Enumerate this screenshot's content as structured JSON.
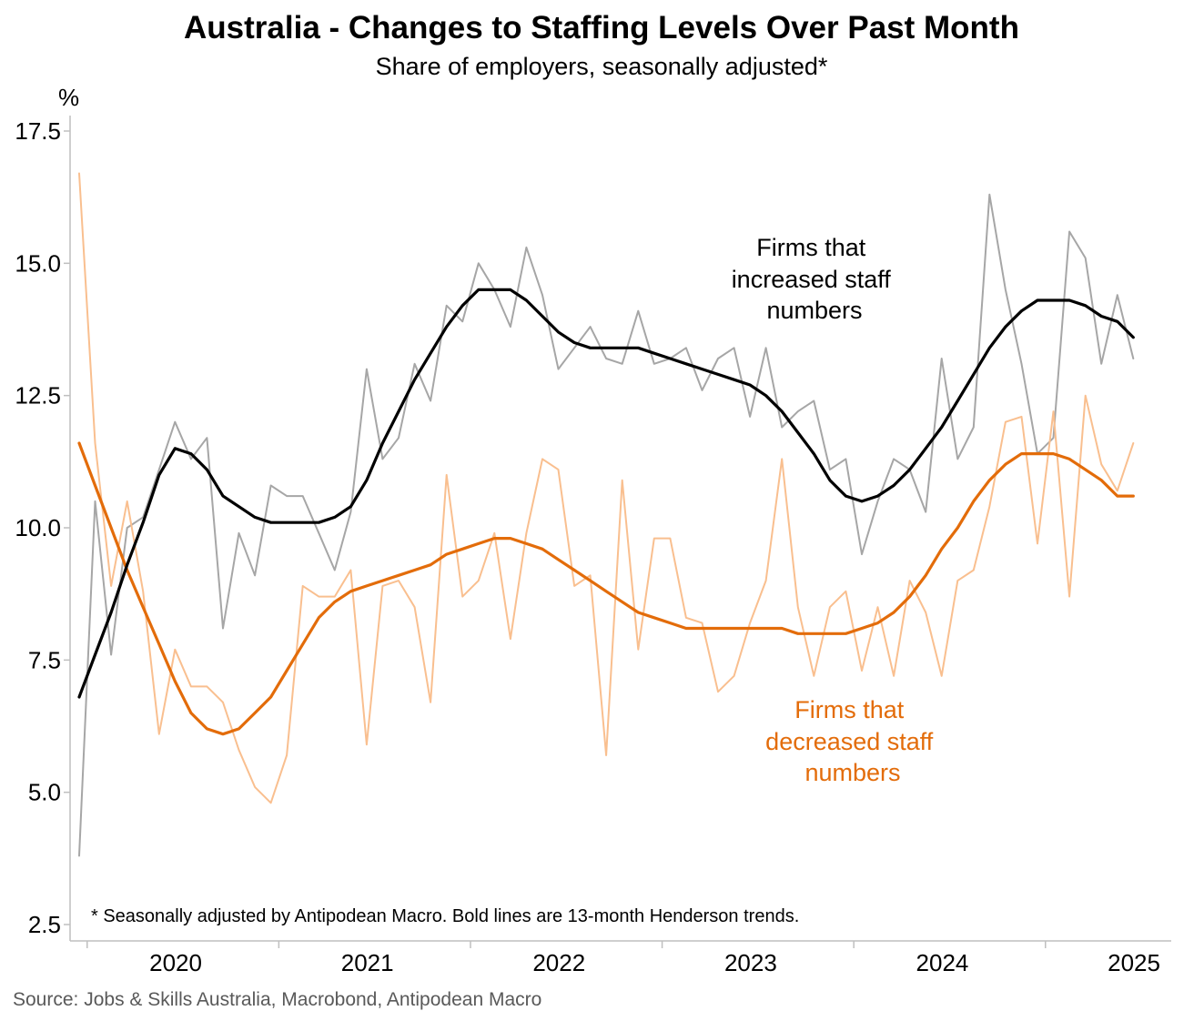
{
  "chart_data": {
    "type": "line",
    "title": "Australia - Changes to Staffing Levels Over Past Month",
    "subtitle": "Share of employers, seasonally adjusted*",
    "ylabel": "%",
    "ylim": [
      2.5,
      17.5
    ],
    "yticks": [
      "2.5",
      "5.0",
      "7.5",
      "10.0",
      "12.5",
      "15.0",
      "17.5"
    ],
    "xticks": [
      "2020",
      "2021",
      "2022",
      "2023",
      "2024",
      "2025"
    ],
    "x_start": "2019-12",
    "annotations": {
      "increased": [
        "Firms that",
        "increased staff",
        "numbers"
      ],
      "decreased": [
        "Firms that",
        "decreased staff",
        "numbers"
      ]
    },
    "note": "* Seasonally adjusted by Antipodean Macro. Bold lines are 13-month Henderson trends.",
    "source": "Source: Jobs & Skills Australia, Macrobond, Antipodean Macro",
    "colors": {
      "increased_raw": "#a6a6a6",
      "increased_trend": "#000000",
      "decreased_raw": "#f9bf8f",
      "decreased_trend": "#e36c0a",
      "axis": "#bfbfbf"
    },
    "series": [
      {
        "name": "Firms that increased staff numbers (seasonally adjusted)",
        "values": [
          3.8,
          10.5,
          7.6,
          10.0,
          10.2,
          11.1,
          12.0,
          11.3,
          11.7,
          8.1,
          9.9,
          9.1,
          10.8,
          10.6,
          10.6,
          9.9,
          9.2,
          10.3,
          13.0,
          11.3,
          11.7,
          13.1,
          12.4,
          14.2,
          13.9,
          15.0,
          14.5,
          13.8,
          15.3,
          14.4,
          13.0,
          13.4,
          13.8,
          13.2,
          13.1,
          14.1,
          13.1,
          13.2,
          13.4,
          12.6,
          13.2,
          13.4,
          12.1,
          13.4,
          11.9,
          12.2,
          12.4,
          11.1,
          11.3,
          9.5,
          10.5,
          11.3,
          11.1,
          10.3,
          13.2,
          11.3,
          11.9,
          16.3,
          14.5,
          13.1,
          11.4,
          11.7,
          15.6,
          15.1,
          13.1,
          14.4,
          13.2
        ]
      },
      {
        "name": "Firms that increased staff numbers (13-month Henderson trend)",
        "values": [
          6.8,
          7.6,
          8.4,
          9.3,
          10.1,
          11.0,
          11.5,
          11.4,
          11.1,
          10.6,
          10.4,
          10.2,
          10.1,
          10.1,
          10.1,
          10.1,
          10.2,
          10.4,
          10.9,
          11.6,
          12.2,
          12.8,
          13.3,
          13.8,
          14.2,
          14.5,
          14.5,
          14.5,
          14.3,
          14.0,
          13.7,
          13.5,
          13.4,
          13.4,
          13.4,
          13.4,
          13.3,
          13.2,
          13.1,
          13.0,
          12.9,
          12.8,
          12.7,
          12.5,
          12.2,
          11.8,
          11.4,
          10.9,
          10.6,
          10.5,
          10.6,
          10.8,
          11.1,
          11.5,
          11.9,
          12.4,
          12.9,
          13.4,
          13.8,
          14.1,
          14.3,
          14.3,
          14.3,
          14.2,
          14.0,
          13.9,
          13.6
        ]
      },
      {
        "name": "Firms that decreased staff numbers (seasonally adjusted)",
        "values": [
          16.7,
          11.6,
          8.9,
          10.5,
          8.8,
          6.1,
          7.7,
          7.0,
          7.0,
          6.7,
          5.8,
          5.1,
          4.8,
          5.7,
          8.9,
          8.7,
          8.7,
          9.2,
          5.9,
          8.9,
          9.0,
          8.5,
          6.7,
          11.0,
          8.7,
          9.0,
          9.9,
          7.9,
          9.9,
          11.3,
          11.1,
          8.9,
          9.1,
          5.7,
          10.9,
          7.7,
          9.8,
          9.8,
          8.3,
          8.2,
          6.9,
          7.2,
          8.2,
          9.0,
          11.3,
          8.5,
          7.2,
          8.5,
          8.8,
          7.3,
          8.5,
          7.2,
          9.0,
          8.4,
          7.2,
          9.0,
          9.2,
          10.4,
          12.0,
          12.1,
          9.7,
          12.2,
          8.7,
          12.5,
          11.2,
          10.7,
          11.6
        ]
      },
      {
        "name": "Firms that decreased staff numbers (13-month Henderson trend)",
        "values": [
          11.6,
          10.8,
          10.0,
          9.2,
          8.5,
          7.8,
          7.1,
          6.5,
          6.2,
          6.1,
          6.2,
          6.5,
          6.8,
          7.3,
          7.8,
          8.3,
          8.6,
          8.8,
          8.9,
          9.0,
          9.1,
          9.2,
          9.3,
          9.5,
          9.6,
          9.7,
          9.8,
          9.8,
          9.7,
          9.6,
          9.4,
          9.2,
          9.0,
          8.8,
          8.6,
          8.4,
          8.3,
          8.2,
          8.1,
          8.1,
          8.1,
          8.1,
          8.1,
          8.1,
          8.1,
          8.0,
          8.0,
          8.0,
          8.0,
          8.1,
          8.2,
          8.4,
          8.7,
          9.1,
          9.6,
          10.0,
          10.5,
          10.9,
          11.2,
          11.4,
          11.4,
          11.4,
          11.3,
          11.1,
          10.9,
          10.6,
          10.6
        ]
      }
    ]
  }
}
